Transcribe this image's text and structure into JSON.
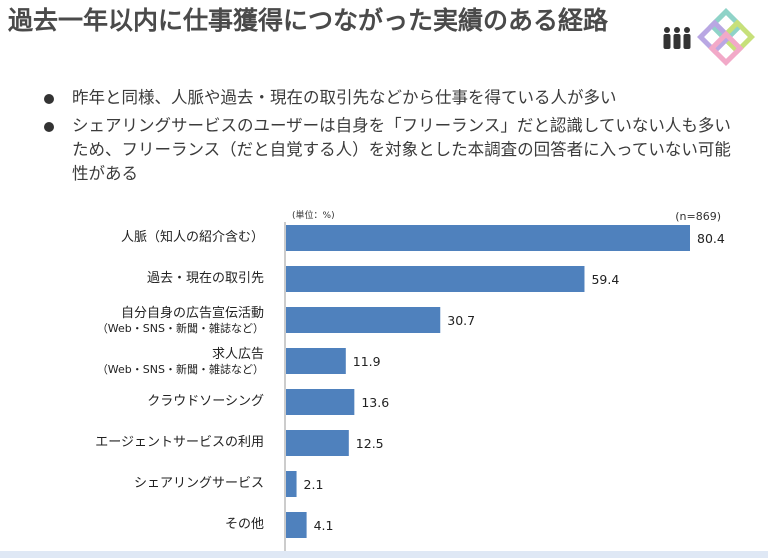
{
  "title": "過去一年以内に仕事獲得につながった実績のある経路",
  "bullets": [
    "昨年と同様、人脈や過去・現在の取引先などから仕事を得ている人が多い",
    "シェアリングサービスのユーザーは自身を「フリーランス」だと認識していない人も多いため、フリーランス（だと自覚する人）を対象とした本調査の回答者に入っていない可能性がある"
  ],
  "icons": {
    "people": "people-group-icon",
    "logo": "interlocking-squares-logo"
  },
  "colors": {
    "bar": "#4f81bd",
    "title": "#4a4a4a"
  },
  "chart_data": {
    "type": "bar",
    "orientation": "horizontal",
    "unit_label": "(単位：%)",
    "n_label": "(n=869)",
    "categories": [
      {
        "label": "人脈（知人の紹介含む）",
        "sub": ""
      },
      {
        "label": "過去・現在の取引先",
        "sub": ""
      },
      {
        "label": "自分自身の広告宣伝活動",
        "sub": "（Web・SNS・新聞・雑誌など）"
      },
      {
        "label": "求人広告",
        "sub": "（Web・SNS・新聞・雑誌など）"
      },
      {
        "label": "クラウドソーシング",
        "sub": ""
      },
      {
        "label": "エージェントサービスの利用",
        "sub": ""
      },
      {
        "label": "シェアリングサービス",
        "sub": ""
      },
      {
        "label": "その他",
        "sub": ""
      }
    ],
    "values": [
      80.4,
      59.4,
      30.7,
      11.9,
      13.6,
      12.5,
      2.1,
      4.1
    ],
    "value_labels": [
      "80.4",
      "59.4",
      "30.7",
      "11.9",
      "13.6",
      "12.5",
      "2.1",
      "4.1"
    ],
    "xlim": [
      0,
      80.4
    ]
  }
}
